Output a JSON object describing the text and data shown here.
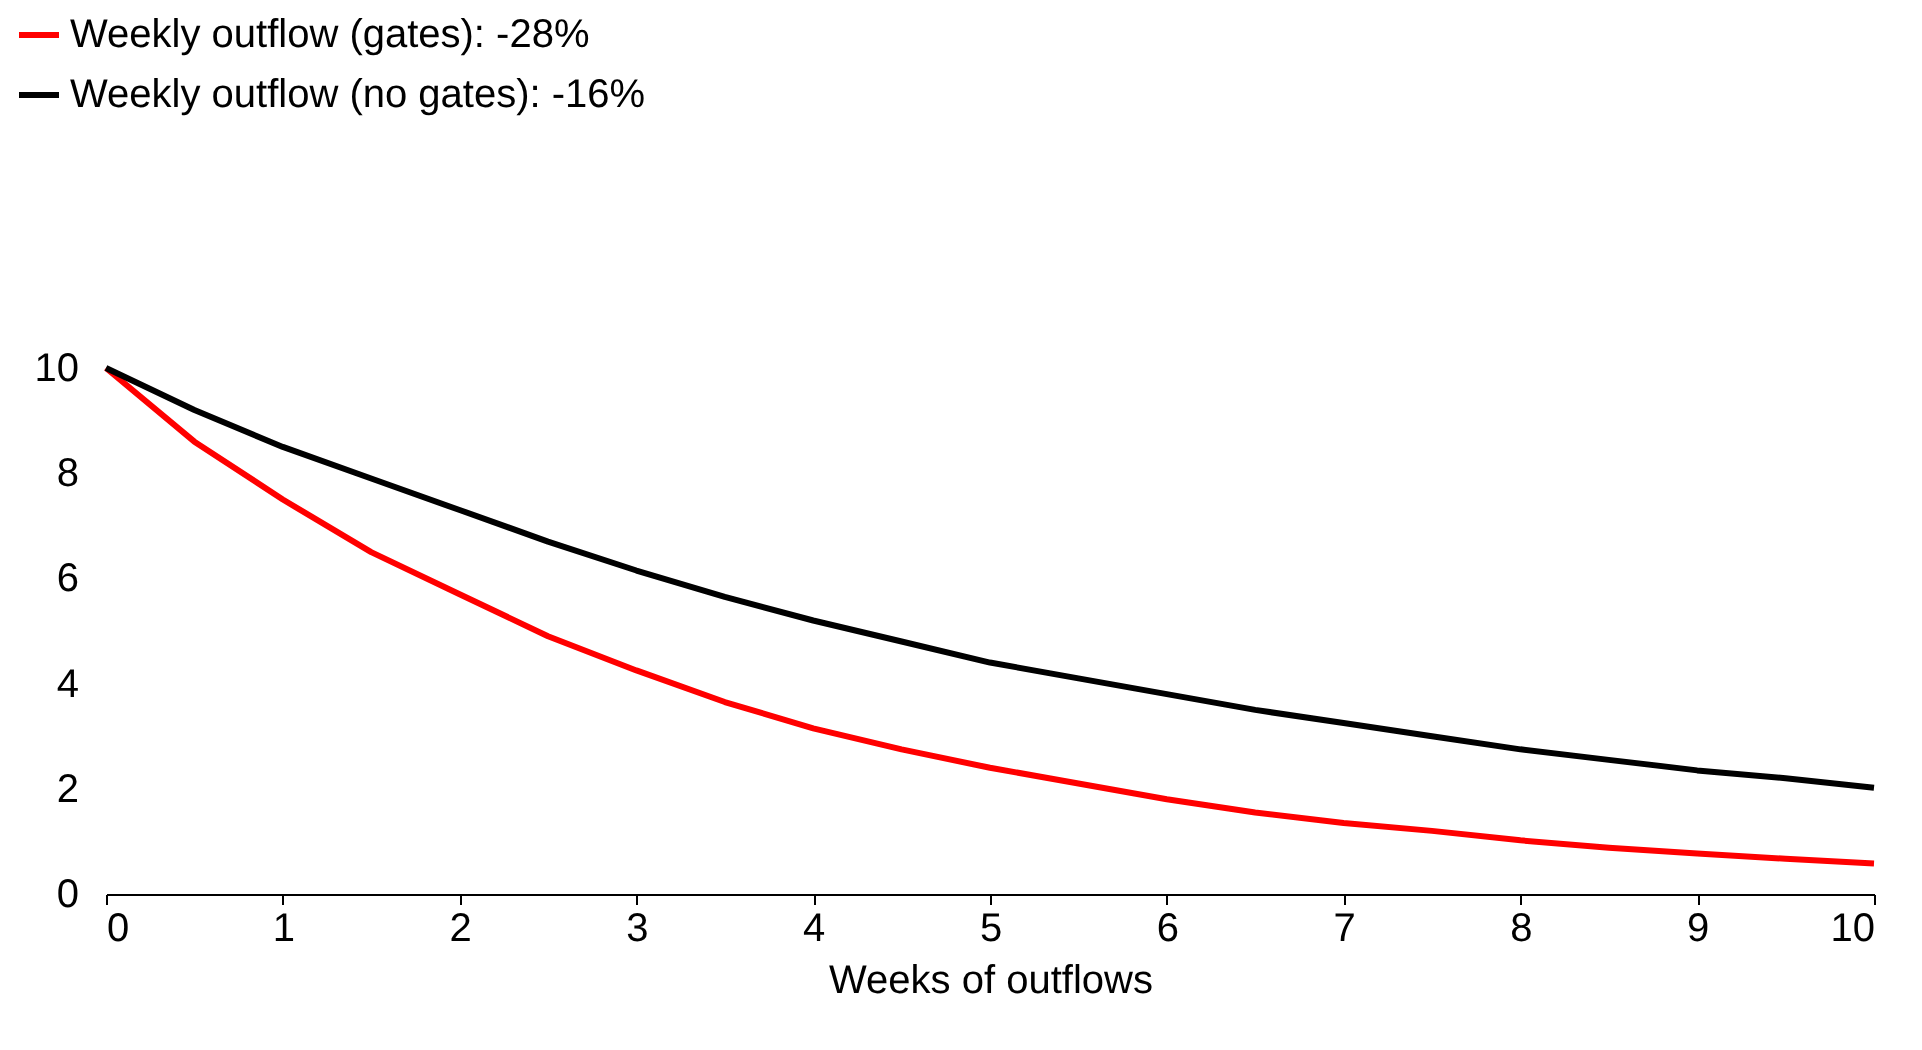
{
  "chart_data": {
    "type": "line",
    "xlabel": "Weeks of outflows",
    "x": [
      0,
      0.5,
      1,
      1.5,
      2,
      2.5,
      3,
      3.5,
      4,
      4.5,
      5,
      5.5,
      6,
      6.5,
      7,
      7.5,
      8,
      8.5,
      9,
      9.5,
      10
    ],
    "series": [
      {
        "name": "Weekly outflow (gates): -28%",
        "color": "#ff0000",
        "values": [
          10,
          8.6,
          7.5,
          6.5,
          5.7,
          4.9,
          4.25,
          3.65,
          3.15,
          2.75,
          2.4,
          2.1,
          1.8,
          1.55,
          1.35,
          1.2,
          1.02,
          0.88,
          0.77,
          0.67,
          0.58
        ]
      },
      {
        "name": "Weekly outflow (no gates): -16%",
        "color": "#000000",
        "values": [
          10,
          9.2,
          8.5,
          7.9,
          7.3,
          6.7,
          6.15,
          5.65,
          5.2,
          4.8,
          4.4,
          4.1,
          3.8,
          3.5,
          3.25,
          3.0,
          2.75,
          2.55,
          2.35,
          2.2,
          2.02
        ]
      }
    ],
    "xlim": [
      0,
      10
    ],
    "xticks": [
      0,
      1,
      2,
      3,
      4,
      5,
      6,
      7,
      8,
      9,
      10
    ],
    "ylim": [
      0,
      10
    ],
    "yticks": [
      0,
      2,
      4,
      6,
      8,
      10
    ],
    "grid": false,
    "legend": "top left",
    "marker": "none",
    "line_style": "solid"
  }
}
